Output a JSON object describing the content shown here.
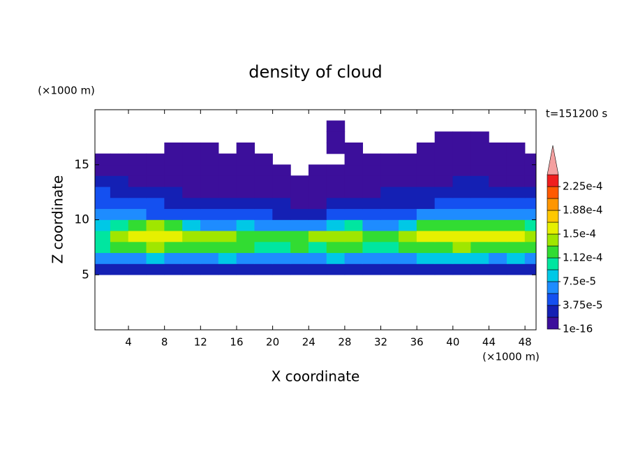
{
  "chart_data": {
    "type": "contour",
    "title": "density of cloud",
    "time_label": "t=151200 s",
    "x_label": "X coordinate",
    "y_label": "Z coordinate",
    "x_unit": "(×1000 m)",
    "y_unit": "(×1000 m)",
    "xlim": [
      0.28,
      49.23
    ],
    "ylim": [
      0,
      20
    ],
    "xticks": [
      4,
      8,
      12,
      16,
      20,
      24,
      28,
      32,
      36,
      40,
      44,
      48
    ],
    "yticks": [
      5,
      10,
      15
    ],
    "levels": [
      {
        "value": 1e-16,
        "label": "1e-16"
      },
      1.875e-05,
      {
        "value": 3.75e-05,
        "label": "3.75e-5"
      },
      5.625e-05,
      {
        "value": 7.5e-05,
        "label": "7.5e-5"
      },
      9.375e-05,
      {
        "value": 0.0001125,
        "label": "1.12e-4"
      },
      0.00013125,
      {
        "value": 0.00015,
        "label": "1.5e-4"
      },
      0.00016875,
      {
        "value": 0.0001875,
        "label": "1.88e-4"
      },
      0.00020625,
      {
        "value": 0.000225,
        "label": "2.25e-4"
      }
    ],
    "colors": [
      "#3c0f9b",
      "#1420b4",
      "#1450f0",
      "#1e8cff",
      "#00c8e6",
      "#00e6a0",
      "#32dc32",
      "#a0e600",
      "#e6f000",
      "#ffc800",
      "#ff9600",
      "#ff5a00",
      "#f01e1e"
    ],
    "over_color": "#f4a0a0",
    "x": [
      1,
      3,
      5,
      7,
      9,
      11,
      13,
      15,
      17,
      19,
      21,
      23,
      25,
      27,
      29,
      31,
      33,
      35,
      37,
      39,
      41,
      43,
      45,
      47,
      49
    ],
    "y": [
      0.5,
      1.5,
      2.5,
      3.5,
      4.5,
      5.5,
      6.5,
      7.5,
      8.5,
      9.5,
      10.5,
      11.5,
      12.5,
      13.5,
      14.5,
      15.5,
      16.5,
      17.5,
      18.5,
      19.5
    ],
    "z": [
      [
        null,
        null,
        null,
        null,
        null,
        null,
        null,
        null,
        null,
        null,
        null,
        null,
        null,
        null,
        null,
        null,
        null,
        null,
        null,
        null,
        null,
        null,
        null,
        null,
        null
      ],
      [
        null,
        null,
        null,
        null,
        null,
        null,
        null,
        null,
        null,
        null,
        null,
        null,
        null,
        null,
        null,
        null,
        null,
        null,
        null,
        null,
        null,
        null,
        null,
        null,
        null
      ],
      [
        null,
        null,
        null,
        null,
        null,
        null,
        null,
        null,
        null,
        null,
        null,
        null,
        null,
        null,
        null,
        null,
        null,
        null,
        null,
        null,
        null,
        null,
        null,
        null,
        null
      ],
      [
        null,
        null,
        null,
        null,
        null,
        null,
        null,
        null,
        null,
        null,
        null,
        null,
        null,
        null,
        null,
        null,
        null,
        null,
        null,
        null,
        null,
        null,
        null,
        null,
        null
      ],
      [
        null,
        null,
        null,
        null,
        null,
        null,
        null,
        null,
        null,
        null,
        null,
        null,
        null,
        null,
        null,
        null,
        null,
        null,
        null,
        null,
        null,
        null,
        null,
        null,
        null
      ],
      [
        2e-05,
        3e-05,
        3e-05,
        3e-05,
        2e-05,
        2e-05,
        3e-05,
        3e-05,
        3e-05,
        2e-05,
        2e-05,
        2e-05,
        3e-05,
        3e-05,
        3e-05,
        2e-05,
        2e-05,
        3e-05,
        3e-05,
        3e-05,
        3e-05,
        2e-05,
        2e-05,
        3e-05,
        3e-05
      ],
      [
        6e-05,
        7e-05,
        7e-05,
        8e-05,
        7e-05,
        6e-05,
        7e-05,
        8e-05,
        7e-05,
        7e-05,
        6e-05,
        7e-05,
        7e-05,
        8e-05,
        7e-05,
        7e-05,
        6e-05,
        7e-05,
        8e-05,
        8e-05,
        8e-05,
        8e-05,
        7e-05,
        8e-05,
        7e-05
      ],
      [
        0.0001,
        0.00012,
        0.00013,
        0.000135,
        0.00013,
        0.00012,
        0.000115,
        0.00012,
        0.00012,
        0.00011,
        0.00011,
        0.000115,
        0.00011,
        0.00012,
        0.00012,
        0.00011,
        0.00011,
        0.00012,
        0.00013,
        0.00013,
        0.000135,
        0.00013,
        0.00013,
        0.000125,
        0.00012
      ],
      [
        0.00011,
        0.000145,
        0.000155,
        0.00016,
        0.00015,
        0.00014,
        0.000145,
        0.000135,
        0.00013,
        0.00013,
        0.000125,
        0.00013,
        0.000135,
        0.00014,
        0.000145,
        0.00013,
        0.00012,
        0.00014,
        0.00015,
        0.000155,
        0.000155,
        0.00016,
        0.00016,
        0.00015,
        0.00014
      ],
      [
        9e-05,
        0.00011,
        0.00013,
        0.000135,
        0.00012,
        8e-05,
        7e-05,
        7e-05,
        8e-05,
        7e-05,
        6e-05,
        6e-05,
        7e-05,
        8e-05,
        0.00011,
        7e-05,
        6e-05,
        8e-05,
        0.00012,
        0.00013,
        0.000125,
        0.00013,
        0.00013,
        0.00012,
        0.0001
      ],
      [
        6e-05,
        7e-05,
        6e-05,
        5e-05,
        5e-05,
        4e-05,
        4e-05,
        4e-05,
        4e-05,
        4e-05,
        3e-05,
        3e-05,
        3e-05,
        4e-05,
        5e-05,
        4e-05,
        4e-05,
        5e-05,
        6e-05,
        6e-05,
        6e-05,
        6e-05,
        6e-05,
        6e-05,
        6e-05
      ],
      [
        5e-05,
        5e-05,
        4e-05,
        4e-05,
        3e-05,
        3e-05,
        2e-05,
        2e-05,
        2e-05,
        2e-05,
        2e-05,
        1e-05,
        1e-05,
        2e-05,
        2e-05,
        3e-05,
        3e-05,
        3e-05,
        3e-05,
        4e-05,
        4e-05,
        4e-05,
        4e-05,
        5e-05,
        5e-05
      ],
      [
        4e-05,
        3e-05,
        3e-05,
        2e-05,
        2e-05,
        1e-05,
        1e-05,
        1e-05,
        1e-05,
        1e-05,
        1e-05,
        5e-06,
        5e-06,
        1e-05,
        1e-05,
        1e-05,
        2e-05,
        2e-05,
        2e-05,
        2e-05,
        3e-05,
        3e-05,
        3e-05,
        3e-05,
        3e-05
      ],
      [
        2e-05,
        2e-05,
        1e-05,
        1e-05,
        1e-05,
        1e-05,
        1e-05,
        5e-06,
        5e-06,
        5e-06,
        5e-06,
        5e-06,
        5e-06,
        5e-06,
        5e-06,
        5e-06,
        1e-05,
        1e-05,
        1e-05,
        1e-05,
        2e-05,
        2e-05,
        1e-05,
        1e-05,
        1e-05
      ],
      [
        5e-06,
        5e-06,
        5e-06,
        5e-06,
        5e-06,
        5e-06,
        5e-06,
        5e-06,
        5e-06,
        5e-06,
        5e-06,
        null,
        5e-06,
        5e-06,
        5e-06,
        5e-06,
        5e-06,
        5e-06,
        5e-06,
        5e-06,
        5e-06,
        5e-06,
        5e-06,
        5e-06,
        5e-06
      ],
      [
        5e-06,
        5e-06,
        5e-06,
        5e-06,
        5e-06,
        5e-06,
        5e-06,
        5e-06,
        5e-06,
        5e-06,
        null,
        null,
        null,
        null,
        5e-06,
        5e-06,
        5e-06,
        5e-06,
        5e-06,
        5e-06,
        5e-06,
        5e-06,
        5e-06,
        5e-06,
        5e-06
      ],
      [
        null,
        null,
        null,
        null,
        5e-06,
        5e-06,
        5e-06,
        null,
        5e-06,
        null,
        null,
        null,
        null,
        5e-06,
        5e-06,
        null,
        null,
        null,
        5e-06,
        5e-06,
        5e-06,
        5e-06,
        5e-06,
        5e-06,
        null
      ],
      [
        null,
        null,
        null,
        null,
        null,
        null,
        null,
        null,
        null,
        null,
        null,
        null,
        null,
        5e-06,
        null,
        null,
        null,
        null,
        null,
        5e-06,
        5e-06,
        5e-06,
        null,
        null,
        null
      ],
      [
        null,
        null,
        null,
        null,
        null,
        null,
        null,
        null,
        null,
        null,
        null,
        null,
        null,
        5e-06,
        null,
        null,
        null,
        null,
        null,
        null,
        null,
        null,
        null,
        null,
        null
      ],
      [
        null,
        null,
        null,
        null,
        null,
        null,
        null,
        null,
        null,
        null,
        null,
        null,
        null,
        null,
        null,
        null,
        null,
        null,
        null,
        null,
        null,
        null,
        null,
        null,
        null
      ]
    ]
  }
}
